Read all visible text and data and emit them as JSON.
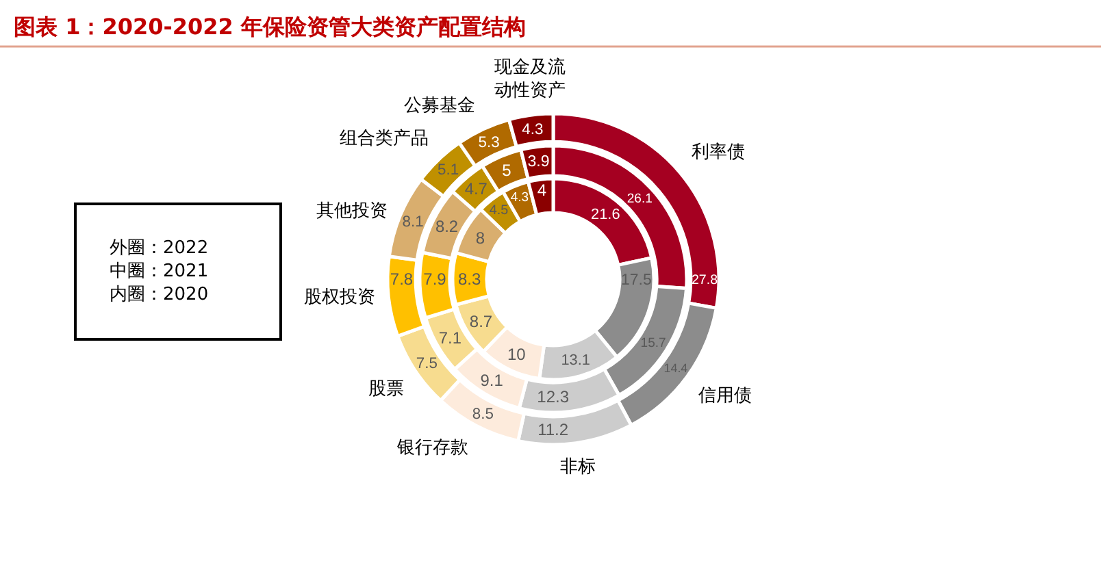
{
  "chart_data": {
    "type": "donut",
    "title": "图表 1：2020-2022 年保险资管大类资产配置结构",
    "categories": [
      "利率债",
      "信用债",
      "非标",
      "银行存款",
      "股票",
      "股权投资",
      "其他投资",
      "组合类产品",
      "公募基金",
      "现金及流动性资产"
    ],
    "colors": [
      "#a50021",
      "#8c8c8c",
      "#cccccc",
      "#fdebdc",
      "#f7dc8f",
      "#ffc000",
      "#d9ae6e",
      "#c09000",
      "#b06a00",
      "#8b0000"
    ],
    "series": [
      {
        "values": [
          27.8,
          14.4,
          11.2,
          8.5,
          7.5,
          7.8,
          8.1,
          5.1,
          5.3,
          4.3
        ]
      },
      {
        "values": [
          26.1,
          15.7,
          12.3,
          9.1,
          7.1,
          7.9,
          8.2,
          4.7,
          5,
          3.9
        ]
      },
      {
        "values": [
          21.6,
          17.5,
          13.1,
          10,
          8.7,
          8.3,
          8,
          4.5,
          4.3,
          4
        ]
      }
    ],
    "data_labels": true,
    "annotations": [
      "外圈：2022",
      "中圈：2021",
      "内圈：2020"
    ]
  }
}
